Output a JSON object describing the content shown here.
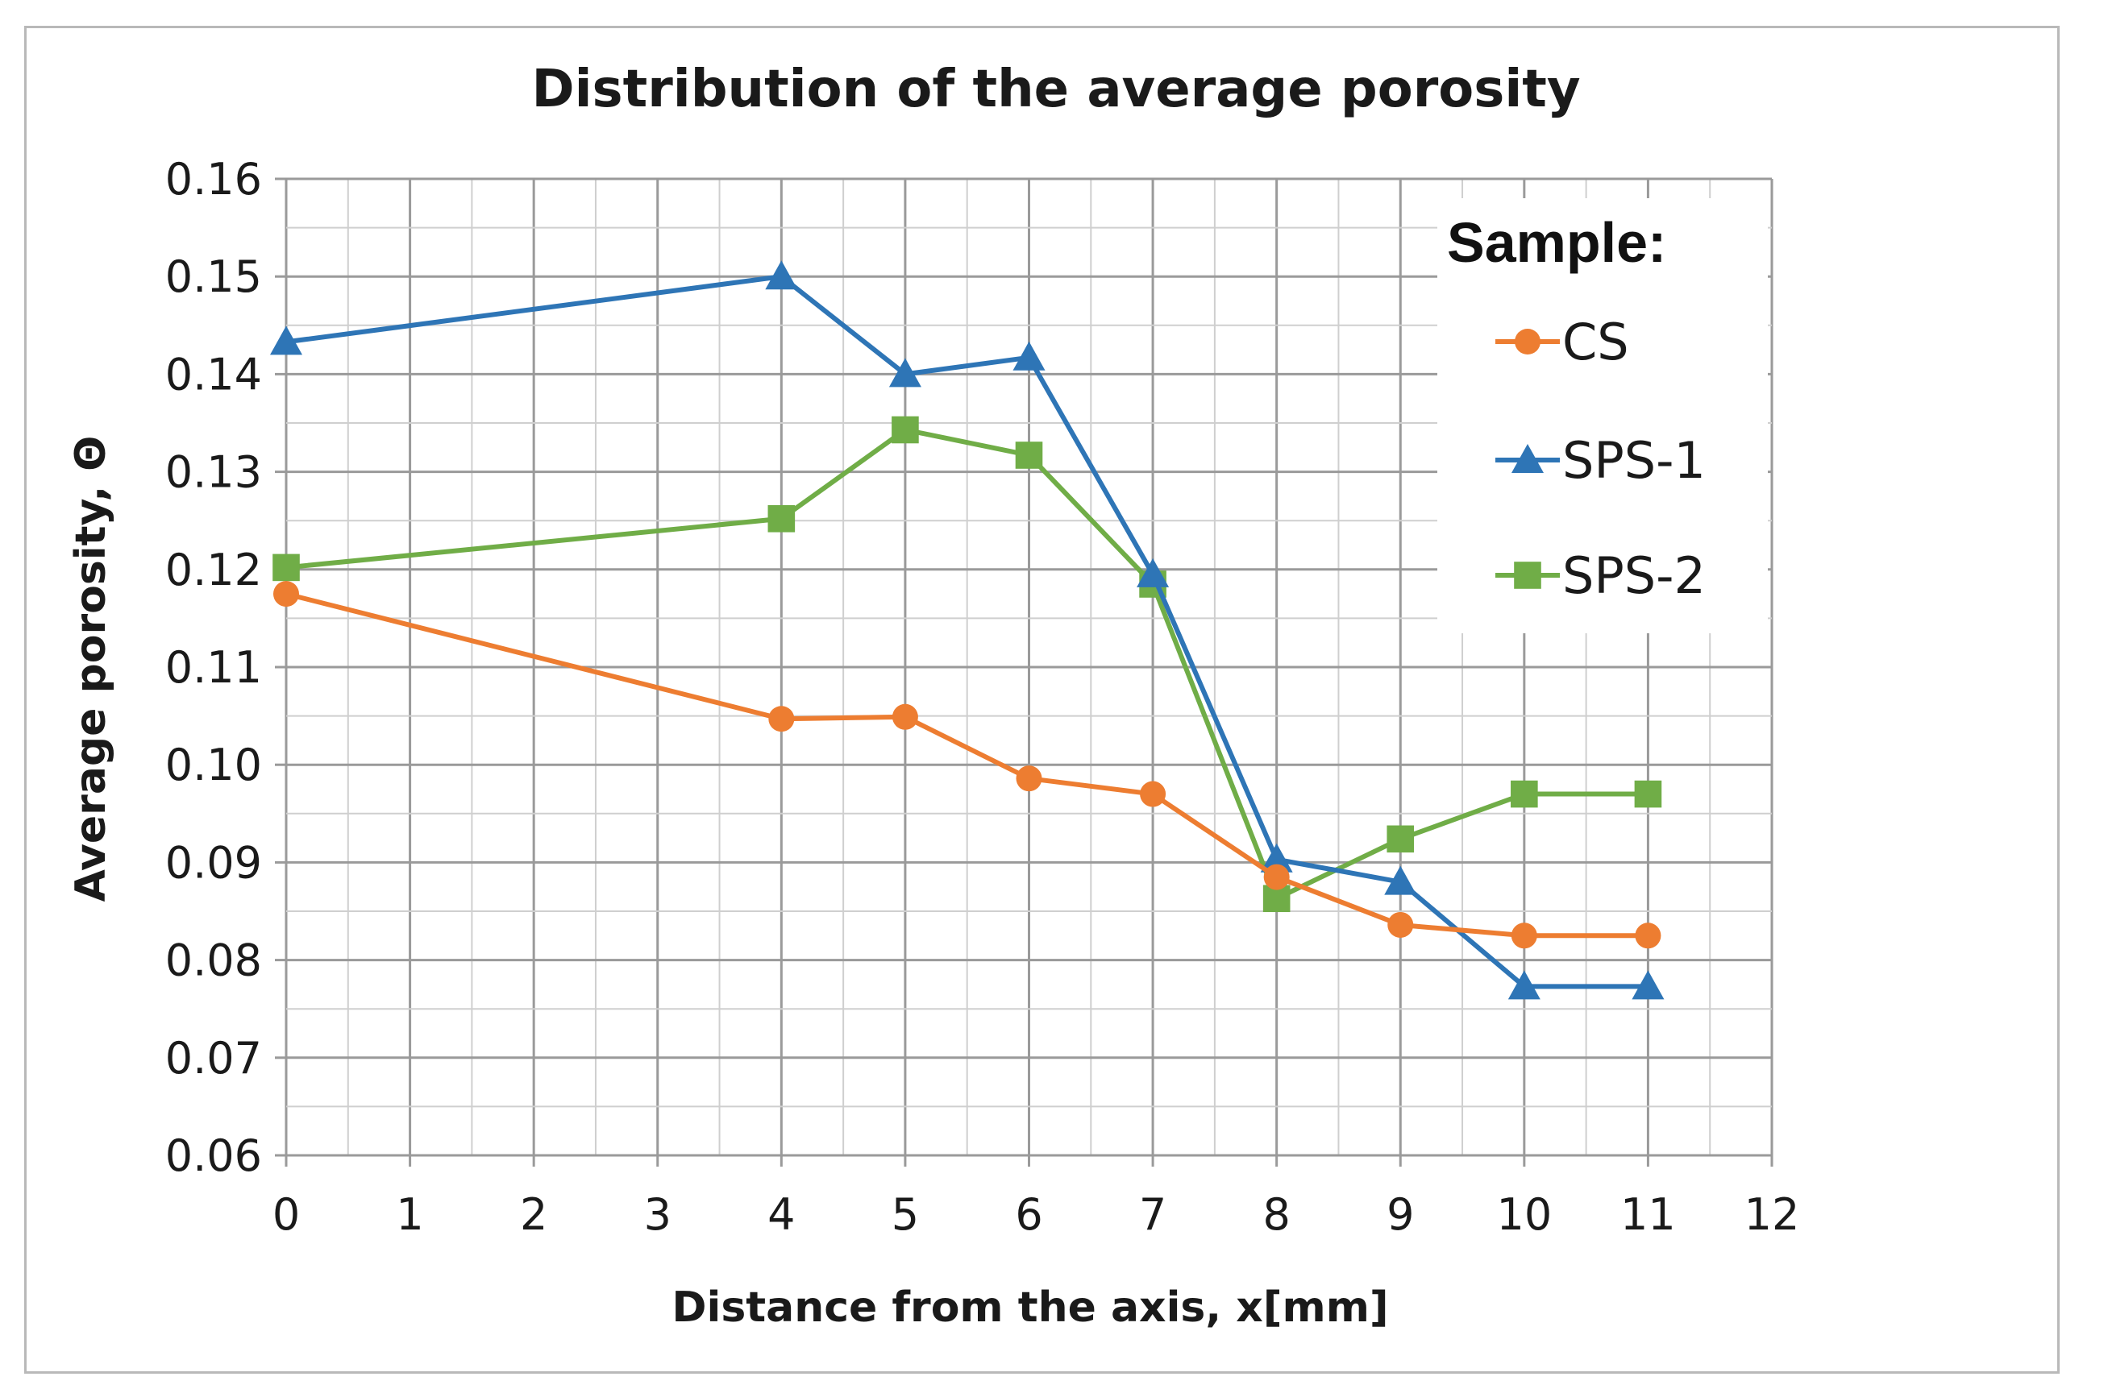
{
  "chart_data": {
    "type": "line",
    "title": "Distribution of the average porosity",
    "xlabel": "Distance from the axis, x[mm]",
    "ylabel": "Average porosity, Θ",
    "xlim": [
      0,
      12
    ],
    "ylim": [
      0.06,
      0.16
    ],
    "x_ticks": [
      "0",
      "1",
      "2",
      "3",
      "4",
      "5",
      "6",
      "7",
      "8",
      "9",
      "10",
      "11",
      "12"
    ],
    "y_ticks": [
      "0.06",
      "0.07",
      "0.08",
      "0.09",
      "0.10",
      "0.11",
      "0.12",
      "0.13",
      "0.14",
      "0.15",
      "0.16"
    ],
    "grid": true,
    "legend_title": "Sample:",
    "legend_position": "top-right",
    "x": [
      0,
      4,
      5,
      6,
      7,
      8,
      9,
      10,
      11
    ],
    "series": [
      {
        "name": "CS",
        "color": "#ED7D31",
        "marker": "circle",
        "values": [
          0.1175,
          0.1047,
          0.1049,
          0.0986,
          0.097,
          0.0885,
          0.0836,
          0.0825,
          0.0825
        ]
      },
      {
        "name": "SPS-1",
        "color": "#2E75B6",
        "marker": "triangle",
        "values": [
          0.1433,
          0.15,
          0.14,
          0.1417,
          0.1195,
          0.0903,
          0.088,
          0.0773,
          0.0773
        ]
      },
      {
        "name": "SPS-2",
        "color": "#70AD47",
        "marker": "square",
        "values": [
          0.1202,
          0.1252,
          0.1343,
          0.1317,
          0.1185,
          0.0863,
          0.0924,
          0.097,
          0.097
        ]
      }
    ]
  }
}
